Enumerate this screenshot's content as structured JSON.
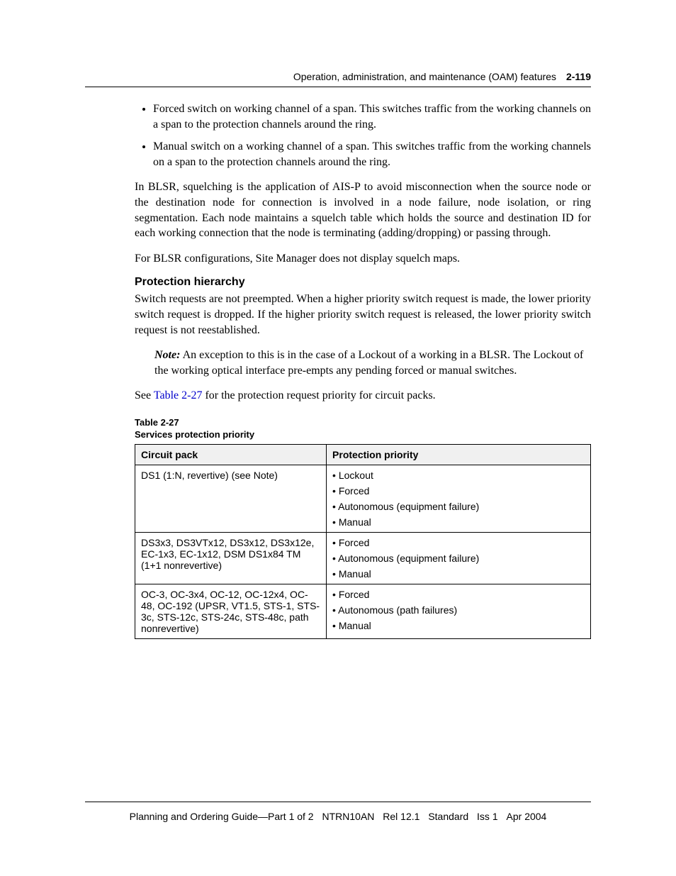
{
  "header": {
    "chapter_title": "Operation, administration, and maintenance (OAM) features",
    "page_number": "2-119"
  },
  "bullets": [
    "Forced switch on working channel of a span. This switches traffic from the working channels on a span to the protection channels around the ring.",
    "Manual switch on a working channel of a span. This switches traffic from the working channels on a span to the protection channels around the ring."
  ],
  "para_squelch": "In BLSR, squelching is the application of AIS-P to avoid misconnection when the source node or the destination node for connection is involved in a node failure, node isolation, or ring segmentation. Each node maintains a squelch table which holds the source and destination ID for each working connection that the node is terminating (adding/dropping) or passing through.",
  "para_squelch_maps": "For BLSR configurations, Site Manager does not display squelch maps.",
  "section": {
    "heading": "Protection hierarchy",
    "para_intro": "Switch requests are not preempted. When a higher priority switch request is made, the lower priority switch request is dropped. If the higher priority switch request is released, the lower priority switch request is not reestablished.",
    "note_label": "Note:",
    "note_body": "An exception to this is in the case of a Lockout of a working in a BLSR. The Lockout of the working optical interface pre-empts any pending forced or manual switches.",
    "see_prefix": "See ",
    "see_link": "Table 2-27",
    "see_suffix": " for the protection request priority for circuit packs."
  },
  "table": {
    "caption_num": "Table 2-27",
    "caption_title": "Services protection priority",
    "headers": [
      "Circuit pack",
      "Protection priority"
    ],
    "rows": [
      {
        "pack": "DS1 (1:N, revertive) (see Note)",
        "priority": [
          "• Lockout",
          "• Forced",
          "• Autonomous (equipment failure)",
          "• Manual"
        ]
      },
      {
        "pack": "DS3x3, DS3VTx12, DS3x12, DS3x12e, EC-1x3, EC-1x12, DSM DS1x84 TM\n(1+1 nonrevertive)",
        "priority": [
          "• Forced",
          "• Autonomous (equipment failure)",
          "• Manual"
        ]
      },
      {
        "pack": "OC-3, OC-3x4, OC-12, OC-12x4, OC-48, OC-192 (UPSR, VT1.5, STS-1, STS-3c, STS-12c, STS-24c, STS-48c, path nonrevertive)",
        "priority": [
          "• Forced",
          "• Autonomous (path failures)",
          "• Manual"
        ]
      }
    ]
  },
  "footer": {
    "doc_title": "Planning and Ordering Guide—Part 1 of 2",
    "doc_code": "NTRN10AN",
    "release": "Rel 12.1",
    "status": "Standard",
    "issue": "Iss 1",
    "date": "Apr 2004"
  }
}
